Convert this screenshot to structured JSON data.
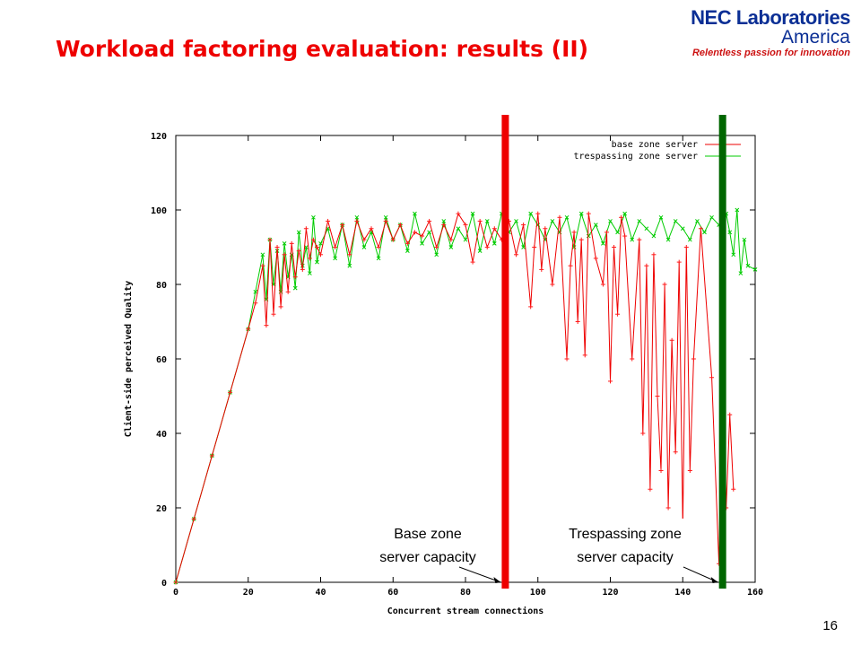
{
  "slide": {
    "title": "Workload factoring evaluation: results (II)",
    "page_number": "16"
  },
  "logo": {
    "line1": "NEC Laboratories",
    "line2": "America",
    "tagline": "Relentless passion for innovation"
  },
  "colors": {
    "title": "#ee0000",
    "base_series": "#ee0000",
    "trespass_series": "#00cc00",
    "base_marker": "#ff1a1a",
    "trespass_marker": "#0a5c0a"
  },
  "chart_data": {
    "type": "line",
    "xlabel": "Concurrent stream connections",
    "ylabel": "Client-side perceived Quality",
    "xlim": [
      0,
      160
    ],
    "ylim": [
      0,
      120
    ],
    "xticks": [
      0,
      20,
      40,
      60,
      80,
      100,
      120,
      140,
      160
    ],
    "yticks": [
      0,
      20,
      40,
      60,
      80,
      100,
      120
    ],
    "legend_position": "top-right",
    "series": [
      {
        "name": "base zone server",
        "x": [
          0,
          5,
          10,
          15,
          20,
          22,
          24,
          25,
          26,
          27,
          28,
          29,
          30,
          31,
          32,
          33,
          34,
          35,
          36,
          37,
          38,
          39,
          40,
          42,
          44,
          46,
          48,
          50,
          52,
          54,
          56,
          58,
          60,
          62,
          64,
          66,
          68,
          70,
          72,
          74,
          76,
          78,
          80,
          82,
          84,
          86,
          88,
          90,
          92,
          94,
          96,
          98,
          99,
          100,
          101,
          102,
          104,
          106,
          108,
          109,
          110,
          111,
          112,
          113,
          114,
          116,
          118,
          119,
          120,
          121,
          122,
          123,
          124,
          126,
          128,
          129,
          130,
          131,
          132,
          133,
          134,
          135,
          136,
          137,
          138,
          139,
          140,
          141,
          142,
          143,
          145,
          148,
          150,
          151,
          152,
          153,
          154
        ],
        "y": [
          0,
          17,
          34,
          51,
          68,
          75,
          85,
          69,
          92,
          72,
          90,
          74,
          88,
          78,
          91,
          82,
          89,
          84,
          95,
          87,
          92,
          90,
          88,
          97,
          90,
          96,
          88,
          97,
          92,
          95,
          90,
          97,
          92,
          96,
          91,
          94,
          93,
          97,
          90,
          96,
          92,
          99,
          96,
          86,
          97,
          90,
          95,
          92,
          97,
          88,
          96,
          74,
          90,
          99,
          84,
          95,
          80,
          98,
          60,
          85,
          94,
          70,
          92,
          61,
          99,
          87,
          80,
          94,
          54,
          90,
          72,
          98,
          93,
          60,
          92,
          40,
          85,
          25,
          88,
          50,
          30,
          80,
          20,
          65,
          35,
          86,
          15,
          90,
          30,
          60,
          95,
          55,
          5,
          60,
          20,
          45,
          25
        ]
      },
      {
        "name": "trespassing zone server",
        "x": [
          0,
          5,
          10,
          15,
          20,
          22,
          24,
          25,
          26,
          27,
          28,
          29,
          30,
          31,
          32,
          33,
          34,
          35,
          36,
          37,
          38,
          39,
          40,
          42,
          44,
          46,
          48,
          50,
          52,
          54,
          56,
          58,
          60,
          62,
          64,
          66,
          68,
          70,
          72,
          74,
          76,
          78,
          80,
          82,
          84,
          86,
          88,
          90,
          92,
          94,
          96,
          98,
          100,
          102,
          104,
          106,
          108,
          110,
          112,
          114,
          116,
          118,
          120,
          122,
          124,
          126,
          128,
          130,
          132,
          134,
          136,
          138,
          140,
          142,
          144,
          146,
          148,
          150,
          151,
          152,
          153,
          154,
          155,
          156,
          157,
          158,
          160
        ],
        "y": [
          0,
          17,
          34,
          51,
          68,
          78,
          88,
          76,
          92,
          80,
          89,
          78,
          91,
          82,
          88,
          79,
          94,
          85,
          90,
          83,
          98,
          86,
          91,
          95,
          87,
          96,
          85,
          98,
          90,
          94,
          87,
          98,
          92,
          96,
          89,
          99,
          91,
          94,
          88,
          97,
          90,
          95,
          92,
          99,
          89,
          97,
          91,
          99,
          94,
          97,
          90,
          99,
          96,
          92,
          97,
          94,
          98,
          90,
          99,
          93,
          96,
          91,
          97,
          94,
          99,
          92,
          97,
          95,
          93,
          98,
          92,
          97,
          95,
          92,
          97,
          94,
          98,
          96,
          92,
          99,
          94,
          88,
          100,
          83,
          92,
          85,
          84
        ]
      }
    ],
    "annotations": [
      {
        "text_line1": "Base zone",
        "text_line2": "server capacity",
        "x": 91,
        "color": "#ee0000"
      },
      {
        "text_line1": "Trespassing  zone",
        "text_line2": "server capacity",
        "x": 151,
        "color": "#006600"
      }
    ]
  }
}
